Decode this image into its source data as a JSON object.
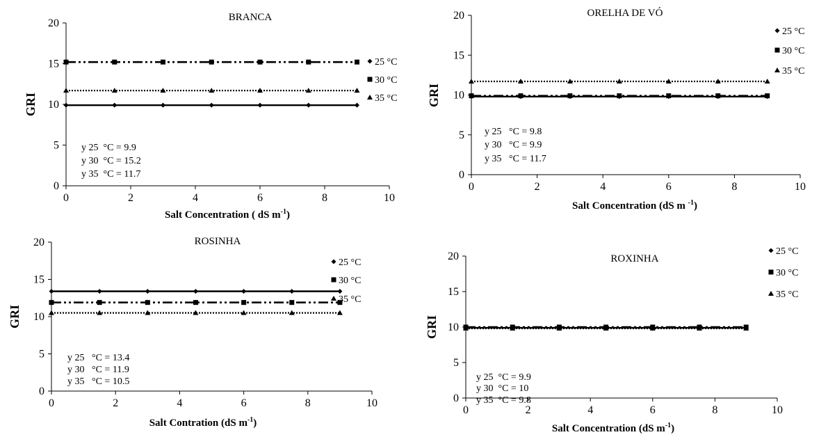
{
  "chart_data": [
    {
      "type": "line",
      "title": "BRANCA",
      "xlabel": "Salt Concentration ( dS m",
      "xlabel_sup": "-1",
      "xlabel_end": ")",
      "ylabel": "GRI",
      "xlim": [
        0,
        10
      ],
      "ylim": [
        0,
        20
      ],
      "xticks": [
        "0",
        "2",
        "4",
        "6",
        "8",
        "10"
      ],
      "yticks": [
        "0",
        "5",
        "10",
        "15",
        "20"
      ],
      "x": [
        0,
        1.5,
        3,
        4.5,
        6,
        7.5,
        9
      ],
      "series": [
        {
          "name": "25 °C",
          "y": 9.9,
          "marker": "diamond",
          "line": "solid"
        },
        {
          "name": "30 °C",
          "y": 15.2,
          "marker": "square",
          "line": "dashdotdot"
        },
        {
          "name": "35 °C",
          "y": 11.7,
          "marker": "triangle",
          "line": "dotted"
        }
      ],
      "legend_position": "right",
      "equations": [
        "y 25  °C = 9.9",
        "y 30  °C = 15.2",
        "y 35  °C = 11.7"
      ]
    },
    {
      "type": "line",
      "title": "ORELHA DE VÓ",
      "xlabel": "Salt Concentration (dS m  ",
      "xlabel_sup": "-1",
      "xlabel_end": ")",
      "ylabel": "GRI",
      "xlim": [
        0,
        10
      ],
      "ylim": [
        0,
        20
      ],
      "xticks": [
        "0",
        "2",
        "4",
        "6",
        "8",
        "10"
      ],
      "yticks": [
        "0",
        "5",
        "10",
        "15",
        "20"
      ],
      "x": [
        0,
        1.5,
        3,
        4.5,
        6,
        7.5,
        9
      ],
      "series": [
        {
          "name": "25 °C",
          "y": 9.8,
          "marker": "diamond",
          "line": "solid"
        },
        {
          "name": "30 °C",
          "y": 9.9,
          "marker": "square",
          "line": "dashdotdot"
        },
        {
          "name": "35 °C",
          "y": 11.7,
          "marker": "triangle",
          "line": "dotted"
        }
      ],
      "legend_position": "right",
      "equations": [
        "y 25   °C = 9.8",
        "y 30   °C = 9.9",
        "y 35   °C = 11.7"
      ]
    },
    {
      "type": "line",
      "title": "ROSINHA",
      "xlabel": "Salt Contration (dS m",
      "xlabel_sup": "-1",
      "xlabel_end": ")",
      "ylabel": "GRI",
      "xlim": [
        0,
        10
      ],
      "ylim": [
        0,
        20
      ],
      "xticks": [
        "0",
        "2",
        "4",
        "6",
        "8",
        "10"
      ],
      "yticks": [
        "0",
        "5",
        "10",
        "15",
        "20"
      ],
      "x": [
        0,
        1.5,
        3,
        4.5,
        6,
        7.5,
        9
      ],
      "series": [
        {
          "name": "25 °C",
          "y": 13.4,
          "marker": "diamond",
          "line": "solid"
        },
        {
          "name": "30 °C",
          "y": 11.9,
          "marker": "square",
          "line": "dashdotdot"
        },
        {
          "name": "35 °C",
          "y": 10.5,
          "marker": "triangle",
          "line": "dotted"
        }
      ],
      "legend_position": "right",
      "equations": [
        "y 25   °C = 13.4",
        "y 30   °C = 11.9",
        "y 35   °C = 10.5"
      ]
    },
    {
      "type": "line",
      "title": "ROXINHA",
      "xlabel": "Salt Concentration (dS m",
      "xlabel_sup": "-1",
      "xlabel_end": ")",
      "ylabel": "GRI",
      "xlim": [
        0,
        10
      ],
      "ylim": [
        0,
        20
      ],
      "xticks": [
        "0",
        "2",
        "4",
        "6",
        "8",
        "10"
      ],
      "yticks": [
        "0",
        "5",
        "10",
        "15",
        "20"
      ],
      "x": [
        0,
        1.5,
        3,
        4.5,
        6,
        7.5,
        9
      ],
      "series": [
        {
          "name": "25 °C",
          "y": 9.9,
          "marker": "diamond",
          "line": "solid"
        },
        {
          "name": "30 °C",
          "y": 10,
          "marker": "square",
          "line": "dashdotdot"
        },
        {
          "name": "35 °C",
          "y": 9.8,
          "marker": "triangle",
          "line": "dotted"
        }
      ],
      "legend_position": "right",
      "equations": [
        "y 25  °C = 9.9",
        "y 30  °C = 10",
        "y 35  °C = 9.8"
      ]
    }
  ]
}
